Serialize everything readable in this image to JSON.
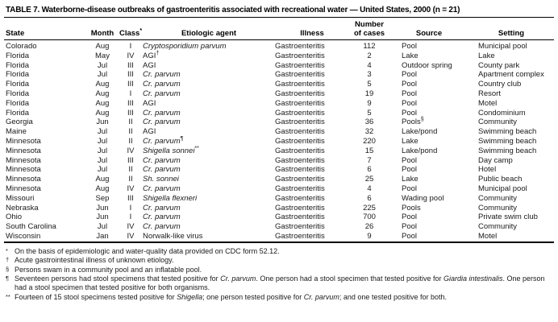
{
  "title": "TABLE 7. Waterborne-disease outbreaks of gastroenteritis associated with recreational water — United States, 2000 (n = 21)",
  "header": {
    "state": "State",
    "month": "Month",
    "class_label": "Class",
    "class_sup": "*",
    "agent": "Etiologic agent",
    "illness": "Illness",
    "cases_line1": "Number",
    "cases_line2": "of cases",
    "source": "Source",
    "setting": "Setting"
  },
  "rows": [
    {
      "state": "Colorado",
      "month": "Aug",
      "cls": "I",
      "agent": "Cryptosporidium parvum",
      "agent_italic": true,
      "agent_sup": "",
      "illness": "Gastroenteritis",
      "cases": "112",
      "source": "Pool",
      "source_sup": "",
      "setting": "Municipal pool"
    },
    {
      "state": "Florida",
      "month": "May",
      "cls": "IV",
      "agent": "AGI",
      "agent_italic": false,
      "agent_sup": "†",
      "illness": "Gastroenteritis",
      "cases": "2",
      "source": "Lake",
      "source_sup": "",
      "setting": "Lake"
    },
    {
      "state": "Florida",
      "month": "Jul",
      "cls": "III",
      "agent": "AGI",
      "agent_italic": false,
      "agent_sup": "",
      "illness": "Gastroenteritis",
      "cases": "4",
      "source": "Outdoor spring",
      "source_sup": "",
      "setting": "County park"
    },
    {
      "state": "Florida",
      "month": "Jul",
      "cls": "III",
      "agent": "Cr. parvum",
      "agent_italic": true,
      "agent_sup": "",
      "illness": "Gastroenteritis",
      "cases": "3",
      "source": "Pool",
      "source_sup": "",
      "setting": "Apartment complex"
    },
    {
      "state": "Florida",
      "month": "Aug",
      "cls": "III",
      "agent": "Cr. parvum",
      "agent_italic": true,
      "agent_sup": "",
      "illness": "Gastroenteritis",
      "cases": "5",
      "source": "Pool",
      "source_sup": "",
      "setting": "Country club"
    },
    {
      "state": "Florida",
      "month": "Aug",
      "cls": "I",
      "agent": "Cr. parvum",
      "agent_italic": true,
      "agent_sup": "",
      "illness": "Gastroenteritis",
      "cases": "19",
      "source": "Pool",
      "source_sup": "",
      "setting": "Resort"
    },
    {
      "state": "Florida",
      "month": "Aug",
      "cls": "III",
      "agent": "AGI",
      "agent_italic": false,
      "agent_sup": "",
      "illness": "Gastroenteritis",
      "cases": "9",
      "source": "Pool",
      "source_sup": "",
      "setting": "Motel"
    },
    {
      "state": "Florida",
      "month": "Aug",
      "cls": "III",
      "agent": "Cr. parvum",
      "agent_italic": true,
      "agent_sup": "",
      "illness": "Gastroenteritis",
      "cases": "5",
      "source": "Pool",
      "source_sup": "",
      "setting": "Condominium"
    },
    {
      "state": "Georgia",
      "month": "Jun",
      "cls": "II",
      "agent": "Cr. parvum",
      "agent_italic": true,
      "agent_sup": "",
      "illness": "Gastroenteritis",
      "cases": "36",
      "source": "Pools",
      "source_sup": "§",
      "setting": "Community"
    },
    {
      "state": "Maine",
      "month": "Jul",
      "cls": "II",
      "agent": "AGI",
      "agent_italic": false,
      "agent_sup": "",
      "illness": "Gastroenteritis",
      "cases": "32",
      "source": "Lake/pond",
      "source_sup": "",
      "setting": "Swimming beach"
    },
    {
      "state": "Minnesota",
      "month": "Jul",
      "cls": "II",
      "agent": "Cr. parvum",
      "agent_italic": true,
      "agent_sup": "¶",
      "illness": "Gastroenteritis",
      "cases": "220",
      "source": "Lake",
      "source_sup": "",
      "setting": "Swimming beach"
    },
    {
      "state": "Minnesota",
      "month": "Jul",
      "cls": "IV",
      "agent": "Shigella sonnei",
      "agent_italic": true,
      "agent_sup": "**",
      "illness": "Gastroenteritis",
      "cases": "15",
      "source": "Lake/pond",
      "source_sup": "",
      "setting": "Swimming beach"
    },
    {
      "state": "Minnesota",
      "month": "Jul",
      "cls": "III",
      "agent": "Cr. parvum",
      "agent_italic": true,
      "agent_sup": "",
      "illness": "Gastroenteritis",
      "cases": "7",
      "source": "Pool",
      "source_sup": "",
      "setting": "Day camp"
    },
    {
      "state": "Minnesota",
      "month": "Jul",
      "cls": "II",
      "agent": "Cr. parvum",
      "agent_italic": true,
      "agent_sup": "",
      "illness": "Gastroenteritis",
      "cases": "6",
      "source": "Pool",
      "source_sup": "",
      "setting": "Hotel"
    },
    {
      "state": "Minnesota",
      "month": "Aug",
      "cls": "II",
      "agent": "Sh. sonnei",
      "agent_italic": true,
      "agent_sup": "",
      "illness": "Gastroenteritis",
      "cases": "25",
      "source": "Lake",
      "source_sup": "",
      "setting": "Public beach"
    },
    {
      "state": "Minnesota",
      "month": "Aug",
      "cls": "IV",
      "agent": "Cr. parvum",
      "agent_italic": true,
      "agent_sup": "",
      "illness": "Gastroenteritis",
      "cases": "4",
      "source": "Pool",
      "source_sup": "",
      "setting": "Municipal pool"
    },
    {
      "state": "Missouri",
      "month": "Sep",
      "cls": "III",
      "agent": "Shigella flexneri",
      "agent_italic": true,
      "agent_sup": "",
      "illness": "Gastroenteritis",
      "cases": "6",
      "source": "Wading pool",
      "source_sup": "",
      "setting": "Community"
    },
    {
      "state": "Nebraska",
      "month": "Jun",
      "cls": "I",
      "agent": "Cr. parvum",
      "agent_italic": true,
      "agent_sup": "",
      "illness": "Gastroenteritis",
      "cases": "225",
      "source": "Pools",
      "source_sup": "",
      "setting": "Community"
    },
    {
      "state": "Ohio",
      "month": "Jun",
      "cls": "I",
      "agent": "Cr. parvum",
      "agent_italic": true,
      "agent_sup": "",
      "illness": "Gastroenteritis",
      "cases": "700",
      "source": "Pool",
      "source_sup": "",
      "setting": "Private swim club"
    },
    {
      "state": "South Carolina",
      "month": "Jul",
      "cls": "IV",
      "agent": "Cr. parvum",
      "agent_italic": true,
      "agent_sup": "",
      "illness": "Gastroenteritis",
      "cases": "26",
      "source": "Pool",
      "source_sup": "",
      "setting": "Community"
    },
    {
      "state": "Wisconsin",
      "month": "Jan",
      "cls": "IV",
      "agent": "Norwalk-like virus",
      "agent_italic": false,
      "agent_sup": "",
      "illness": "Gastroenteritis",
      "cases": "9",
      "source": "Pool",
      "source_sup": "",
      "setting": "Motel"
    }
  ],
  "footnotes": [
    {
      "marker": "*",
      "segments": [
        {
          "t": "On the basis of epidemiologic and water-quality data provided on CDC form 52.12.",
          "i": false
        }
      ]
    },
    {
      "marker": "†",
      "segments": [
        {
          "t": "Acute gastrointestinal illness of unknown etiology.",
          "i": false
        }
      ]
    },
    {
      "marker": "§",
      "segments": [
        {
          "t": "Persons swam in a community pool and an inflatable pool.",
          "i": false
        }
      ]
    },
    {
      "marker": "¶",
      "segments": [
        {
          "t": "Seventeen persons had stool specimens that tested positive for ",
          "i": false
        },
        {
          "t": "Cr. parvum",
          "i": true
        },
        {
          "t": ". One person had a stool specimen that tested positive for ",
          "i": false
        },
        {
          "t": "Giardia intestinalis",
          "i": true
        },
        {
          "t": ". One person had a stool specimen that tested positive for both organisms.",
          "i": false
        }
      ]
    },
    {
      "marker": "**",
      "segments": [
        {
          "t": "Fourteen of 15 stool specimens tested positive for ",
          "i": false
        },
        {
          "t": "Shigella",
          "i": true
        },
        {
          "t": "; one person tested positive for ",
          "i": false
        },
        {
          "t": "Cr. parvum",
          "i": true
        },
        {
          "t": "; and one tested positive for both.",
          "i": false
        }
      ]
    }
  ]
}
